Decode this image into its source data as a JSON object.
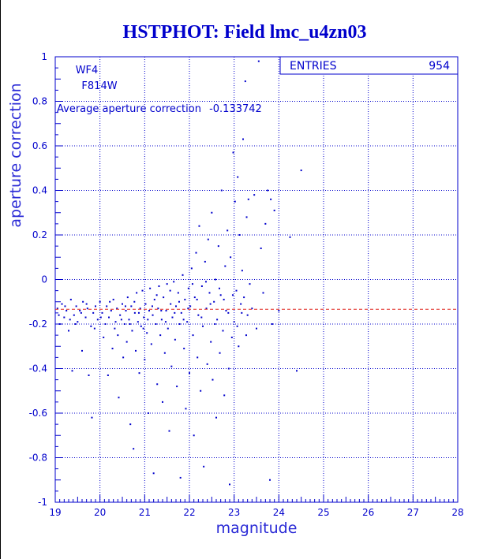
{
  "chart_data": {
    "type": "scatter",
    "title": "HSTPHOT: Field lmc_u4zn03",
    "xlabel": "magnitude",
    "ylabel": "aperture correction",
    "xlim": [
      19,
      28
    ],
    "ylim": [
      -1,
      1
    ],
    "xticks": [
      19,
      20,
      21,
      22,
      23,
      24,
      25,
      26,
      27,
      28
    ],
    "yticks": [
      -1,
      -0.8,
      -0.6,
      -0.4,
      -0.2,
      0,
      0.2,
      0.4,
      0.6,
      0.8,
      1
    ],
    "grid": true,
    "annotations": {
      "chip": "WF4",
      "filter": "F814W",
      "average_label": "Average aperture correction",
      "average_value": "-0.133742"
    },
    "stats": {
      "entries_label": "ENTRIES",
      "entries_value": "954"
    },
    "average_line_y": -0.133742,
    "colors": {
      "points": "#0000cc",
      "axes": "#0000cc",
      "title": "#0000cc",
      "average_line": "#e0231c"
    },
    "points": [
      [
        19.05,
        -0.13
      ],
      [
        19.1,
        -0.2
      ],
      [
        19.15,
        -0.11
      ],
      [
        19.2,
        -0.17
      ],
      [
        19.25,
        -0.14
      ],
      [
        19.3,
        -0.23
      ],
      [
        19.35,
        -0.09
      ],
      [
        19.38,
        -0.41
      ],
      [
        19.42,
        -0.16
      ],
      [
        19.47,
        -0.12
      ],
      [
        19.5,
        -0.19
      ],
      [
        19.55,
        -0.14
      ],
      [
        19.6,
        -0.32
      ],
      [
        19.62,
        -0.1
      ],
      [
        19.68,
        -0.17
      ],
      [
        19.72,
        -0.13
      ],
      [
        19.75,
        -0.43
      ],
      [
        19.8,
        -0.21
      ],
      [
        19.82,
        -0.62
      ],
      [
        19.85,
        -0.15
      ],
      [
        19.9,
        -0.12
      ],
      [
        19.95,
        -0.18
      ],
      [
        20.0,
        -0.1
      ],
      [
        20.05,
        -0.15
      ],
      [
        20.08,
        -0.26
      ],
      [
        20.12,
        -0.2
      ],
      [
        20.15,
        -0.12
      ],
      [
        20.18,
        -0.43
      ],
      [
        20.2,
        -0.17
      ],
      [
        20.25,
        -0.14
      ],
      [
        20.28,
        -0.31
      ],
      [
        20.3,
        -0.09
      ],
      [
        20.35,
        -0.19
      ],
      [
        20.38,
        -0.13
      ],
      [
        20.4,
        -0.25
      ],
      [
        20.42,
        -0.53
      ],
      [
        20.45,
        -0.16
      ],
      [
        20.5,
        -0.11
      ],
      [
        20.52,
        -0.35
      ],
      [
        20.55,
        -0.2
      ],
      [
        20.58,
        -0.14
      ],
      [
        20.6,
        -0.28
      ],
      [
        20.62,
        -0.08
      ],
      [
        20.65,
        -0.18
      ],
      [
        20.68,
        -0.65
      ],
      [
        20.7,
        -0.12
      ],
      [
        20.72,
        -0.23
      ],
      [
        20.75,
        -0.76
      ],
      [
        20.78,
        -0.15
      ],
      [
        20.8,
        -0.32
      ],
      [
        20.82,
        -0.06
      ],
      [
        20.85,
        -0.19
      ],
      [
        20.88,
        -0.42
      ],
      [
        20.9,
        -0.13
      ],
      [
        20.92,
        -0.21
      ],
      [
        20.95,
        -0.05
      ],
      [
        20.98,
        -0.17
      ],
      [
        21.0,
        -0.36
      ],
      [
        21.02,
        -0.11
      ],
      [
        21.05,
        -0.24
      ],
      [
        21.08,
        -0.6
      ],
      [
        21.1,
        -0.14
      ],
      [
        21.12,
        -0.04
      ],
      [
        21.15,
        -0.29
      ],
      [
        21.18,
        -0.16
      ],
      [
        21.2,
        -0.87
      ],
      [
        21.22,
        -0.09
      ],
      [
        21.25,
        -0.2
      ],
      [
        21.28,
        -0.47
      ],
      [
        21.3,
        -0.13
      ],
      [
        21.32,
        -0.03
      ],
      [
        21.35,
        -0.25
      ],
      [
        21.38,
        -0.18
      ],
      [
        21.4,
        -0.55
      ],
      [
        21.42,
        -0.08
      ],
      [
        21.45,
        -0.33
      ],
      [
        21.48,
        -0.14
      ],
      [
        21.5,
        -0.02
      ],
      [
        21.52,
        -0.22
      ],
      [
        21.55,
        -0.68
      ],
      [
        21.58,
        -0.11
      ],
      [
        21.6,
        -0.39
      ],
      [
        21.62,
        -0.17
      ],
      [
        21.65,
        -0.01
      ],
      [
        21.68,
        -0.27
      ],
      [
        21.7,
        -0.12
      ],
      [
        21.72,
        -0.48
      ],
      [
        21.75,
        -0.06
      ],
      [
        21.78,
        -0.2
      ],
      [
        21.8,
        -0.89
      ],
      [
        21.82,
        -0.15
      ],
      [
        21.85,
        0.02
      ],
      [
        21.88,
        -0.31
      ],
      [
        21.9,
        -0.09
      ],
      [
        21.92,
        -0.58
      ],
      [
        21.95,
        -0.19
      ],
      [
        21.98,
        -0.04
      ],
      [
        22.0,
        -0.42
      ],
      [
        22.02,
        -0.12
      ],
      [
        22.05,
        0.05
      ],
      [
        22.08,
        -0.25
      ],
      [
        22.1,
        -0.7
      ],
      [
        22.12,
        -0.08
      ],
      [
        22.15,
        0.12
      ],
      [
        22.18,
        -0.35
      ],
      [
        22.2,
        -0.16
      ],
      [
        22.22,
        0.24
      ],
      [
        22.25,
        -0.5
      ],
      [
        22.28,
        -0.03
      ],
      [
        22.3,
        -0.21
      ],
      [
        22.32,
        -0.84
      ],
      [
        22.35,
        0.08
      ],
      [
        22.38,
        -0.13
      ],
      [
        22.4,
        -0.38
      ],
      [
        22.42,
        0.18
      ],
      [
        22.45,
        -0.06
      ],
      [
        22.48,
        -0.28
      ],
      [
        22.5,
        0.3
      ],
      [
        22.52,
        -0.45
      ],
      [
        22.55,
        -0.1
      ],
      [
        22.58,
        0.0
      ],
      [
        22.6,
        -0.62
      ],
      [
        22.62,
        -0.18
      ],
      [
        22.65,
        0.15
      ],
      [
        22.68,
        -0.33
      ],
      [
        22.7,
        -0.07
      ],
      [
        22.72,
        0.4
      ],
      [
        22.75,
        -0.23
      ],
      [
        22.78,
        -0.52
      ],
      [
        22.8,
        0.06
      ],
      [
        22.82,
        -0.14
      ],
      [
        22.85,
        0.22
      ],
      [
        22.88,
        -0.4
      ],
      [
        22.9,
        -0.92
      ],
      [
        22.92,
        0.1
      ],
      [
        22.95,
        -0.26
      ],
      [
        22.98,
        0.57
      ],
      [
        23.0,
        -0.19
      ],
      [
        23.02,
        0.35
      ],
      [
        23.05,
        -0.05
      ],
      [
        23.08,
        0.46
      ],
      [
        23.1,
        -0.3
      ],
      [
        23.12,
        0.2
      ],
      [
        23.15,
        -0.11
      ],
      [
        23.18,
        0.04
      ],
      [
        23.2,
        0.63
      ],
      [
        23.22,
        -0.08
      ],
      [
        23.25,
        0.89
      ],
      [
        23.28,
        0.28
      ],
      [
        23.3,
        -0.16
      ],
      [
        23.32,
        0.36
      ],
      [
        23.35,
        -0.02
      ],
      [
        23.4,
        -0.13
      ],
      [
        23.45,
        0.38
      ],
      [
        23.5,
        -0.22
      ],
      [
        23.55,
        0.98
      ],
      [
        23.6,
        0.14
      ],
      [
        23.65,
        -0.06
      ],
      [
        23.7,
        0.25
      ],
      [
        23.75,
        0.4
      ],
      [
        23.8,
        -0.9
      ],
      [
        23.82,
        0.36
      ],
      [
        23.85,
        -0.2
      ],
      [
        23.9,
        0.31
      ],
      [
        24.0,
        -0.14
      ],
      [
        24.25,
        0.19
      ],
      [
        24.4,
        -0.41
      ],
      [
        24.5,
        0.49
      ],
      [
        19.08,
        -0.16
      ],
      [
        19.22,
        -0.12
      ],
      [
        19.33,
        -0.18
      ],
      [
        19.45,
        -0.2
      ],
      [
        19.58,
        -0.15
      ],
      [
        19.7,
        -0.11
      ],
      [
        19.88,
        -0.22
      ],
      [
        20.02,
        -0.17
      ],
      [
        20.22,
        -0.1
      ],
      [
        20.33,
        -0.22
      ],
      [
        20.48,
        -0.18
      ],
      [
        20.57,
        -0.12
      ],
      [
        20.67,
        -0.2
      ],
      [
        20.77,
        -0.1
      ],
      [
        20.87,
        -0.15
      ],
      [
        20.97,
        -0.22
      ],
      [
        21.07,
        -0.18
      ],
      [
        21.17,
        -0.12
      ],
      [
        21.27,
        -0.07
      ],
      [
        21.37,
        -0.14
      ],
      [
        21.47,
        -0.19
      ],
      [
        21.57,
        -0.05
      ],
      [
        21.67,
        -0.15
      ],
      [
        21.77,
        -0.1
      ],
      [
        21.87,
        -0.18
      ],
      [
        21.97,
        -0.13
      ],
      [
        22.07,
        -0.02
      ],
      [
        22.17,
        -0.09
      ],
      [
        22.27,
        -0.17
      ],
      [
        22.37,
        -0.01
      ],
      [
        22.47,
        -0.11
      ],
      [
        22.57,
        -0.2
      ],
      [
        22.67,
        -0.04
      ],
      [
        22.77,
        -0.09
      ],
      [
        22.87,
        -0.15
      ],
      [
        22.97,
        -0.07
      ],
      [
        23.07,
        -0.21
      ],
      [
        23.17,
        -0.15
      ],
      [
        23.27,
        -0.25
      ]
    ]
  }
}
